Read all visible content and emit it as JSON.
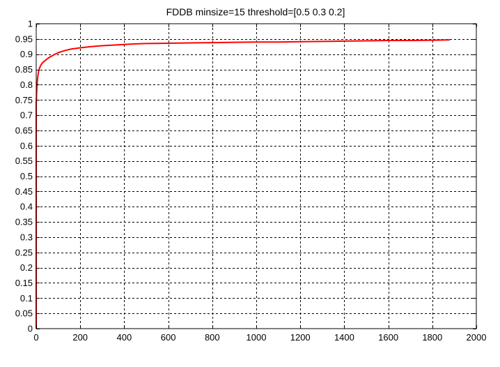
{
  "chart_data": {
    "type": "line",
    "title": "FDDB minsize=15 threshold=[0.5 0.3 0.2]",
    "xlabel": "",
    "ylabel": "",
    "xlim": [
      0,
      2000
    ],
    "ylim": [
      0,
      1
    ],
    "grid": true,
    "x_ticks": [
      0,
      200,
      400,
      600,
      800,
      1000,
      1200,
      1400,
      1600,
      1800,
      2000
    ],
    "y_ticks": [
      0,
      0.05,
      0.1,
      0.15,
      0.2,
      0.25,
      0.3,
      0.35,
      0.4,
      0.45,
      0.5,
      0.55,
      0.6,
      0.65,
      0.7,
      0.75,
      0.8,
      0.85,
      0.9,
      0.95,
      1
    ],
    "series": [
      {
        "color": "#ff0000",
        "x": [
          0,
          0,
          3,
          6,
          10,
          15,
          22,
          30,
          45,
          60,
          80,
          100,
          130,
          160,
          200,
          250,
          300,
          350,
          400,
          450,
          500,
          600,
          700,
          800,
          900,
          1000,
          1100,
          1200,
          1300,
          1400,
          1500,
          1600,
          1700,
          1800,
          1880
        ],
        "y": [
          0,
          0.74,
          0.79,
          0.82,
          0.84,
          0.855,
          0.865,
          0.873,
          0.882,
          0.89,
          0.898,
          0.905,
          0.912,
          0.917,
          0.921,
          0.925,
          0.928,
          0.93,
          0.932,
          0.934,
          0.935,
          0.936,
          0.937,
          0.938,
          0.939,
          0.94,
          0.94,
          0.941,
          0.942,
          0.943,
          0.944,
          0.945,
          0.945,
          0.946,
          0.947
        ]
      }
    ]
  }
}
